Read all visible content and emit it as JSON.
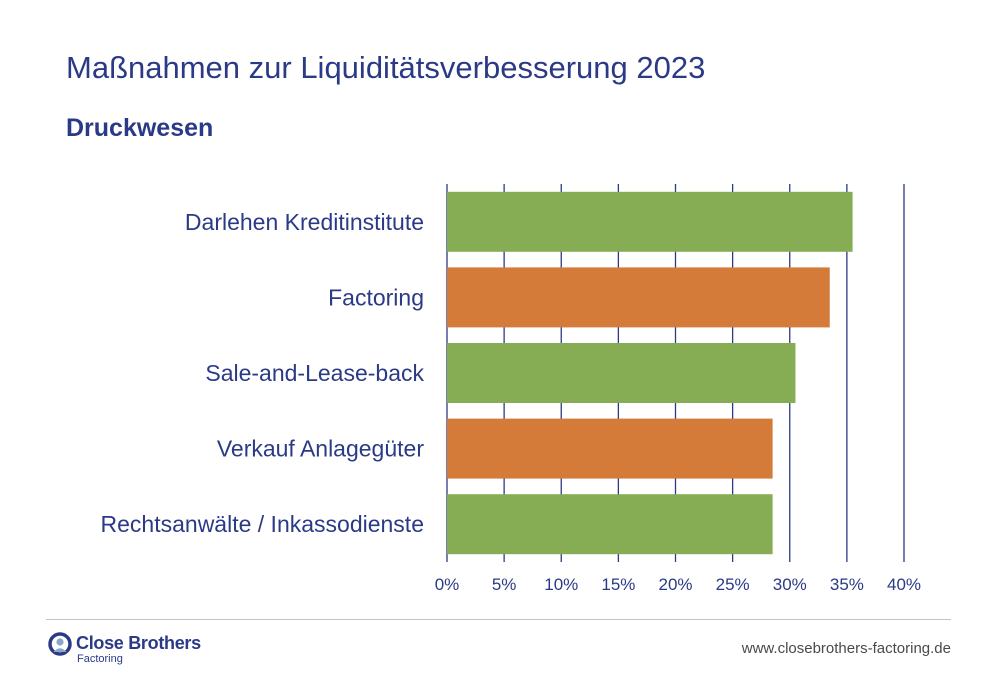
{
  "header": {
    "title": "Maßnahmen zur Liquiditätsverbesserung 2023",
    "subtitle": "Druckwesen"
  },
  "chart_data": {
    "type": "bar",
    "orientation": "horizontal",
    "categories": [
      "Darlehen Kreditinstitute",
      "Factoring",
      "Sale-and-Lease-back",
      "Verkauf Anlagegüter",
      "Rechtsanwälte / Inkassodienste"
    ],
    "values": [
      35.5,
      33.5,
      30.5,
      28.5,
      28.5
    ],
    "bar_colors": [
      "#86ad53",
      "#d57b3a",
      "#86ad53",
      "#d57b3a",
      "#86ad53"
    ],
    "xlim": [
      0,
      40
    ],
    "x_ticks": [
      0,
      5,
      10,
      15,
      20,
      25,
      30,
      35,
      40
    ],
    "x_tick_labels": [
      "0%",
      "5%",
      "10%",
      "15%",
      "20%",
      "25%",
      "30%",
      "35%",
      "40%"
    ],
    "grid": true,
    "legend": "none",
    "xlabel": "",
    "ylabel": ""
  },
  "footer": {
    "logo_name": "Close Brothers",
    "logo_sub": "Factoring",
    "logo_icon": "close-brothers-logo-icon",
    "website": "www.closebrothers-factoring.de"
  },
  "colors": {
    "text": "#2b3a86",
    "grid": "#2b3a86",
    "green": "#86ad53",
    "orange": "#d57b3a",
    "divider": "#c4c4c4"
  }
}
